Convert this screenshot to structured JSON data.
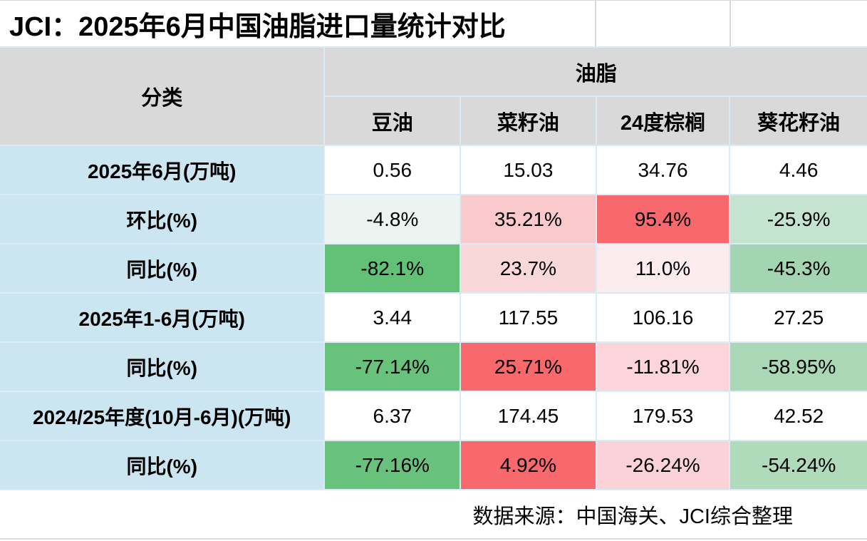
{
  "title": "JCI：2025年6月中国油脂进口量统计对比",
  "colors": {
    "header_bg": "#d9d9d9",
    "label_bg": "#cbe5f1",
    "gridline": "#d9ecf5",
    "strong_red": "#f7696c",
    "strong_green": "#63c077",
    "white": "#ffffff"
  },
  "table": {
    "category_header": "分类",
    "group_header": "油脂",
    "columns": [
      "豆油",
      "菜籽油",
      "24度棕榈",
      "葵花籽油"
    ],
    "rows": [
      {
        "label": "2025年6月(万吨)",
        "cells": [
          {
            "text": "0.56",
            "bg": "#ffffff"
          },
          {
            "text": "15.03",
            "bg": "#ffffff"
          },
          {
            "text": "34.76",
            "bg": "#ffffff"
          },
          {
            "text": "4.46",
            "bg": "#ffffff"
          }
        ]
      },
      {
        "label": "环比(%)",
        "cells": [
          {
            "text": "-4.8%",
            "bg": "#ebf4f0"
          },
          {
            "text": "35.21%",
            "bg": "#f9c9cc"
          },
          {
            "text": "95.4%",
            "bg": "#f7696c"
          },
          {
            "text": "-25.9%",
            "bg": "#c5e4cf"
          }
        ]
      },
      {
        "label": "同比(%)",
        "cells": [
          {
            "text": "-82.1%",
            "bg": "#63c077"
          },
          {
            "text": "23.7%",
            "bg": "#fad8da"
          },
          {
            "text": "11.0%",
            "bg": "#fcebef"
          },
          {
            "text": "-45.3%",
            "bg": "#a4d5b2"
          }
        ]
      },
      {
        "label": "2025年1-6月(万吨)",
        "cells": [
          {
            "text": "3.44",
            "bg": "#ffffff"
          },
          {
            "text": "117.55",
            "bg": "#ffffff"
          },
          {
            "text": "106.16",
            "bg": "#ffffff"
          },
          {
            "text": "27.25",
            "bg": "#ffffff"
          }
        ]
      },
      {
        "label": "同比(%)",
        "cells": [
          {
            "text": "-77.14%",
            "bg": "#68c27b"
          },
          {
            "text": "25.71%",
            "bg": "#f7696c"
          },
          {
            "text": "-11.81%",
            "bg": "#fbd5da"
          },
          {
            "text": "-58.95%",
            "bg": "#aad8b7"
          }
        ]
      },
      {
        "label": "2024/25年度(10月-6月)(万吨)",
        "cells": [
          {
            "text": "6.37",
            "bg": "#ffffff"
          },
          {
            "text": "174.45",
            "bg": "#ffffff"
          },
          {
            "text": "179.53",
            "bg": "#ffffff"
          },
          {
            "text": "42.52",
            "bg": "#ffffff"
          }
        ]
      },
      {
        "label": "同比(%)",
        "cells": [
          {
            "text": "-77.16%",
            "bg": "#68c27b"
          },
          {
            "text": "4.92%",
            "bg": "#f7696c"
          },
          {
            "text": "-26.24%",
            "bg": "#fbd2d7"
          },
          {
            "text": "-54.24%",
            "bg": "#b0dbbb"
          }
        ]
      }
    ]
  },
  "footer": {
    "source": "数据来源：中国海关、JCI综合整理"
  },
  "chart_data": {
    "type": "table",
    "title": "JCI：2025年6月中国油脂进口量统计对比",
    "column_group": "油脂",
    "columns": [
      "豆油",
      "菜籽油",
      "24度棕榈",
      "葵花籽油"
    ],
    "rows": [
      {
        "label": "2025年6月(万吨)",
        "values": [
          0.56,
          15.03,
          34.76,
          4.46
        ]
      },
      {
        "label": "环比(%)",
        "values": [
          -4.8,
          35.21,
          95.4,
          -25.9
        ]
      },
      {
        "label": "同比(%)",
        "values": [
          -82.1,
          23.7,
          11.0,
          -45.3
        ]
      },
      {
        "label": "2025年1-6月(万吨)",
        "values": [
          3.44,
          117.55,
          106.16,
          27.25
        ]
      },
      {
        "label": "同比(%)",
        "values": [
          -77.14,
          25.71,
          -11.81,
          -58.95
        ]
      },
      {
        "label": "2024/25年度(10月-6月)(万吨)",
        "values": [
          6.37,
          174.45,
          179.53,
          42.52
        ]
      },
      {
        "label": "同比(%)",
        "values": [
          -77.16,
          4.92,
          -26.24,
          -54.24
        ]
      }
    ],
    "source": "数据来源：中国海关、JCI综合整理",
    "layout_hints": {
      "red_means": "increase",
      "green_means": "decrease",
      "intensity": "proportional to magnitude"
    }
  }
}
